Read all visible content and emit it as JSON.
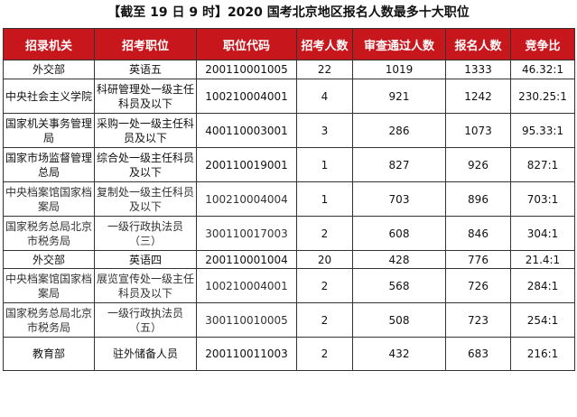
{
  "title": "【截至 19 日 9 时】2020 国考北京地区报名人数最多十大职位",
  "headers": [
    "招录机关",
    "招考职位",
    "职位代码",
    "招考人数",
    "审查通过人数",
    "报名人数",
    "竞争比"
  ],
  "rows": [
    {
      "agency": "外交部",
      "position": "英语五",
      "code": "200110001005",
      "quota": "22",
      "approved": "1019",
      "applicants": "1333",
      "ratio": "46.32:1"
    },
    {
      "agency": "中央社会主义学院",
      "position": "科研管理处一级主任科员及以下",
      "code": "100210004001",
      "quota": "4",
      "approved": "921",
      "applicants": "1242",
      "ratio": "230.25:1"
    },
    {
      "agency": "国家机关事务管理局",
      "position": "采购一处一级主任科员及以下",
      "code": "400110003001",
      "quota": "3",
      "approved": "286",
      "applicants": "1073",
      "ratio": "95.33:1"
    },
    {
      "agency": "国家市场监督管理总局",
      "position": "综合处一级主任科员及以下",
      "code": "200110019001",
      "quota": "1",
      "approved": "827",
      "applicants": "926",
      "ratio": "827:1"
    },
    {
      "agency": "中央档案馆国家档案局",
      "position": "复制处一级主任科员及以下",
      "code": "100210004004",
      "quota": "1",
      "approved": "703",
      "applicants": "896",
      "ratio": "703:1"
    },
    {
      "agency": "国家税务总局北京市税务局",
      "position": "一级行政执法员（三）",
      "code": "300110017003",
      "quota": "2",
      "approved": "608",
      "applicants": "846",
      "ratio": "304:1"
    },
    {
      "agency": "外交部",
      "position": "英语四",
      "code": "200110001004",
      "quota": "20",
      "approved": "428",
      "applicants": "776",
      "ratio": "21.4:1"
    },
    {
      "agency": "中央档案馆国家档案局",
      "position": "展览宣传处一级主任科员及以下",
      "code": "100210004001",
      "quota": "2",
      "approved": "568",
      "applicants": "726",
      "ratio": "284:1"
    },
    {
      "agency": "国家税务总局北京市税务局",
      "position": "一级行政执法员（五）",
      "code": "300110010005",
      "quota": "2",
      "approved": "508",
      "applicants": "723",
      "ratio": "254:1"
    },
    {
      "agency": "教育部",
      "position": "驻外储备人员",
      "code": "200110011003",
      "quota": "2",
      "approved": "432",
      "applicants": "683",
      "ratio": "216:1"
    }
  ]
}
